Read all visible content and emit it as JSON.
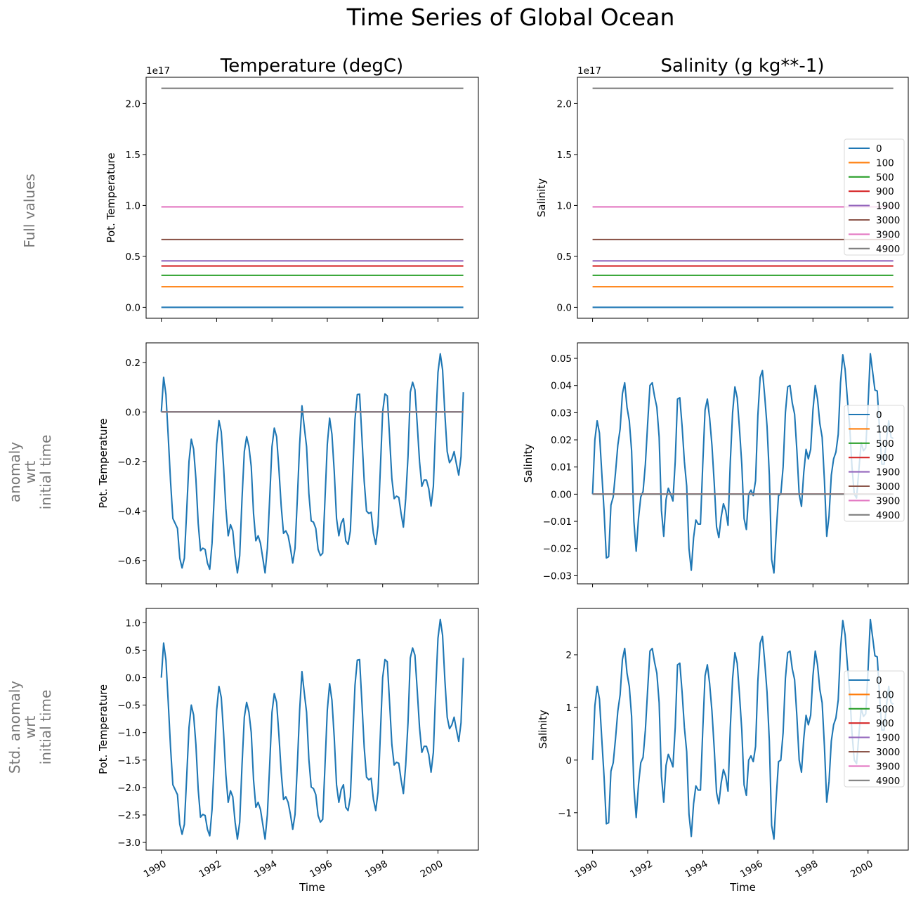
{
  "title": "Time Series of Global Ocean",
  "columns": [
    "Temperature (degC)",
    "Salinity (g kg**-1)"
  ],
  "row_labels": [
    [
      "Full values"
    ],
    [
      "anomaly",
      "wrt",
      "initial time"
    ],
    [
      "Std. anomaly",
      "wrt",
      "initial time"
    ]
  ],
  "colors": {
    "0": "#1f77b4",
    "100": "#ff7f0e",
    "500": "#2ca02c",
    "900": "#d62728",
    "1900": "#9467bd",
    "3000": "#8c564b",
    "3900": "#e377c2",
    "4900": "#7f7f7f"
  },
  "time": [
    "1990-01",
    "1990-02",
    "1990-03",
    "1990-04",
    "1990-05",
    "1990-06",
    "1990-07",
    "1990-08",
    "1990-09",
    "1990-10",
    "1990-11",
    "1990-12",
    "1991-01",
    "1991-02",
    "1991-03",
    "1991-04",
    "1991-05",
    "1991-06",
    "1991-07",
    "1991-08",
    "1991-09",
    "1991-10",
    "1991-11",
    "1991-12",
    "1992-01",
    "1992-02",
    "1992-03",
    "1992-04",
    "1992-05",
    "1992-06",
    "1992-07",
    "1992-08",
    "1992-09",
    "1992-10",
    "1992-11",
    "1992-12",
    "1993-01",
    "1993-02",
    "1993-03",
    "1993-04",
    "1993-05",
    "1993-06",
    "1993-07",
    "1993-08",
    "1993-09",
    "1993-10",
    "1993-11",
    "1993-12",
    "1994-01",
    "1994-02",
    "1994-03",
    "1994-04",
    "1994-05",
    "1994-06",
    "1994-07",
    "1994-08",
    "1994-09",
    "1994-10",
    "1994-11",
    "1994-12",
    "1995-01",
    "1995-02",
    "1995-03",
    "1995-04",
    "1995-05",
    "1995-06",
    "1995-07",
    "1995-08",
    "1995-09",
    "1995-10",
    "1995-11",
    "1995-12",
    "1996-01",
    "1996-02",
    "1996-03",
    "1996-04",
    "1996-05",
    "1996-06",
    "1996-07",
    "1996-08",
    "1996-09",
    "1996-10",
    "1996-11",
    "1996-12",
    "1997-01",
    "1997-02",
    "1997-03",
    "1997-04",
    "1997-05",
    "1997-06",
    "1997-07",
    "1997-08",
    "1997-09",
    "1997-10",
    "1997-11",
    "1997-12",
    "1998-01",
    "1998-02",
    "1998-03",
    "1998-04",
    "1998-05",
    "1998-06",
    "1998-07",
    "1998-08",
    "1998-09",
    "1998-10",
    "1998-11",
    "1998-12",
    "1999-01",
    "1999-02",
    "1999-03",
    "1999-04",
    "1999-05",
    "1999-06",
    "1999-07",
    "1999-08",
    "1999-09",
    "1999-10",
    "1999-11",
    "1999-12",
    "2000-01",
    "2000-02",
    "2000-03",
    "2000-04",
    "2000-05",
    "2000-06",
    "2000-07",
    "2000-08",
    "2000-09",
    "2000-10",
    "2000-11",
    "2000-12"
  ],
  "chart_data": [
    {
      "type": "line",
      "row": 0,
      "col": 0,
      "ylabel": "Pot. Temperature",
      "xlabel": "",
      "offset_text": "1e17",
      "xlim": [
        1989.45,
        2001.46
      ],
      "ylim": [
        -1.075e+16,
        2.258e+17
      ],
      "xticks": [
        1990,
        1992,
        1994,
        1996,
        1998,
        2000
      ],
      "xtick_labels": [],
      "yticks": [
        0,
        5e+16,
        1e+17,
        1.5e+17,
        2e+17
      ],
      "ytick_labels": [
        "0.0",
        "0.5",
        "1.0",
        "1.5",
        "2.0"
      ],
      "legend": false,
      "series": [
        {
          "name": "0",
          "value": 0
        },
        {
          "name": "100",
          "value": 2.02e+16
        },
        {
          "name": "500",
          "value": 3.14e+16
        },
        {
          "name": "900",
          "value": 4.06e+16
        },
        {
          "name": "1900",
          "value": 4.56e+16
        },
        {
          "name": "3000",
          "value": 6.65e+16
        },
        {
          "name": "3900",
          "value": 9.86e+16
        },
        {
          "name": "4900",
          "value": 2.15e+17
        }
      ]
    },
    {
      "type": "line",
      "row": 0,
      "col": 1,
      "ylabel": "Salinity",
      "xlabel": "",
      "offset_text": "1e17",
      "xlim": [
        1989.45,
        2001.46
      ],
      "ylim": [
        -1.075e+16,
        2.258e+17
      ],
      "xticks": [
        1990,
        1992,
        1994,
        1996,
        1998,
        2000
      ],
      "xtick_labels": [],
      "yticks": [
        0,
        5e+16,
        1e+17,
        1.5e+17,
        2e+17
      ],
      "ytick_labels": [
        "0.0",
        "0.5",
        "1.0",
        "1.5",
        "2.0"
      ],
      "legend": "center-right",
      "series": [
        {
          "name": "0",
          "value": 0
        },
        {
          "name": "100",
          "value": 2.02e+16
        },
        {
          "name": "500",
          "value": 3.14e+16
        },
        {
          "name": "900",
          "value": 4.06e+16
        },
        {
          "name": "1900",
          "value": 4.56e+16
        },
        {
          "name": "3000",
          "value": 6.65e+16
        },
        {
          "name": "3900",
          "value": 9.86e+16
        },
        {
          "name": "4900",
          "value": 2.15e+17
        }
      ]
    },
    {
      "type": "line",
      "row": 1,
      "col": 0,
      "ylabel": "Pot. Temperature",
      "xlabel": "",
      "xlim": [
        1989.45,
        2001.46
      ],
      "ylim": [
        -0.694,
        0.279
      ],
      "xticks": [
        1990,
        1992,
        1994,
        1996,
        1998,
        2000
      ],
      "xtick_labels": [],
      "yticks": [
        -0.6,
        -0.4,
        -0.2,
        0.0,
        0.2
      ],
      "ytick_labels": [
        "−0.6",
        "−0.4",
        "−0.2",
        "0.0",
        "0.2"
      ],
      "legend": false,
      "series": [
        {
          "name": "0",
          "values": [
            0,
            0.14,
            0.07,
            -0.1,
            -0.28,
            -0.43,
            -0.45,
            -0.47,
            -0.59,
            -0.63,
            -0.59,
            -0.4,
            -0.2,
            -0.11,
            -0.15,
            -0.27,
            -0.45,
            -0.56,
            -0.55,
            -0.555,
            -0.61,
            -0.635,
            -0.53,
            -0.33,
            -0.13,
            -0.035,
            -0.08,
            -0.22,
            -0.39,
            -0.5,
            -0.455,
            -0.48,
            -0.58,
            -0.65,
            -0.58,
            -0.35,
            -0.16,
            -0.1,
            -0.14,
            -0.22,
            -0.41,
            -0.52,
            -0.5,
            -0.53,
            -0.59,
            -0.65,
            -0.55,
            -0.35,
            -0.14,
            -0.065,
            -0.1,
            -0.23,
            -0.38,
            -0.49,
            -0.48,
            -0.5,
            -0.55,
            -0.61,
            -0.55,
            -0.35,
            -0.13,
            0.025,
            -0.06,
            -0.14,
            -0.33,
            -0.44,
            -0.445,
            -0.47,
            -0.555,
            -0.58,
            -0.57,
            -0.35,
            -0.13,
            -0.025,
            -0.09,
            -0.24,
            -0.43,
            -0.5,
            -0.45,
            -0.43,
            -0.52,
            -0.535,
            -0.48,
            -0.25,
            -0.03,
            0.07,
            0.072,
            -0.1,
            -0.28,
            -0.4,
            -0.41,
            -0.405,
            -0.49,
            -0.535,
            -0.46,
            -0.23,
            0.0,
            0.073,
            0.065,
            -0.1,
            -0.27,
            -0.35,
            -0.34,
            -0.345,
            -0.41,
            -0.465,
            -0.35,
            -0.18,
            0.08,
            0.12,
            0.09,
            -0.05,
            -0.2,
            -0.3,
            -0.275,
            -0.275,
            -0.31,
            -0.38,
            -0.3,
            -0.05,
            0.16,
            0.235,
            0.17,
            -0.01,
            -0.16,
            -0.205,
            -0.19,
            -0.16,
            -0.21,
            -0.255,
            -0.18,
            0.08
          ]
        },
        {
          "name": "100",
          "value": 0
        },
        {
          "name": "500",
          "value": 0
        },
        {
          "name": "900",
          "value": 0
        },
        {
          "name": "1900",
          "value": 0
        },
        {
          "name": "3000",
          "value": 0
        },
        {
          "name": "3900",
          "value": 0
        },
        {
          "name": "4900",
          "value": 0
        }
      ]
    },
    {
      "type": "line",
      "row": 1,
      "col": 1,
      "ylabel": "Salinity",
      "xlabel": "",
      "xlim": [
        1989.45,
        2001.46
      ],
      "ylim": [
        -0.033,
        0.0557
      ],
      "xticks": [
        1990,
        1992,
        1994,
        1996,
        1998,
        2000
      ],
      "xtick_labels": [],
      "yticks": [
        -0.03,
        -0.02,
        -0.01,
        0.0,
        0.01,
        0.02,
        0.03,
        0.04,
        0.05
      ],
      "ytick_labels": [
        "−0.03",
        "−0.02",
        "−0.01",
        "0.00",
        "0.01",
        "0.02",
        "0.03",
        "0.04",
        "0.05"
      ],
      "legend": "center-right",
      "series": [
        {
          "name": "0",
          "values": [
            0,
            0.02,
            0.027,
            0.0225,
            0.008,
            -0.006,
            -0.0235,
            -0.023,
            -0.004,
            -0.001,
            0.008,
            0.018,
            0.024,
            0.037,
            0.041,
            0.032,
            0.027,
            0.016,
            -0.01,
            -0.021,
            -0.009,
            -0.001,
            0.001,
            0.011,
            0.026,
            0.04,
            0.041,
            0.036,
            0.032,
            0.021,
            -0.006,
            -0.0155,
            -0.002,
            0.0022,
            0.0,
            -0.0025,
            0.012,
            0.035,
            0.0355,
            0.025,
            0.012,
            0.003,
            -0.02,
            -0.028,
            -0.016,
            -0.0095,
            -0.011,
            -0.011,
            0.011,
            0.031,
            0.035,
            0.028,
            0.018,
            0.004,
            -0.012,
            -0.016,
            -0.0085,
            -0.0035,
            -0.006,
            -0.0115,
            0.012,
            0.03,
            0.0395,
            0.0355,
            0.024,
            0.011,
            -0.009,
            -0.013,
            0.0,
            0.0015,
            -0.0005,
            0.005,
            0.029,
            0.043,
            0.0455,
            0.036,
            0.025,
            0.007,
            -0.024,
            -0.029,
            -0.014,
            -0.0005,
            0.0,
            0.01,
            0.03,
            0.0395,
            0.04,
            0.0335,
            0.0295,
            0.016,
            0.0,
            -0.0045,
            0.008,
            0.0165,
            0.013,
            0.0165,
            0.031,
            0.04,
            0.035,
            0.026,
            0.021,
            0.005,
            -0.0155,
            -0.008,
            0.007,
            0.013,
            0.0155,
            0.022,
            0.041,
            0.0513,
            0.046,
            0.035,
            0.025,
            0.01,
            0.0,
            -0.0014,
            0.009,
            0.019,
            0.016,
            0.017,
            0.033,
            0.0517,
            0.045,
            0.0383,
            0.038,
            0.024,
            0.011,
            0.011,
            0.02,
            0.027,
            0.021,
            0.0205
          ]
        },
        {
          "name": "100",
          "value": 0
        },
        {
          "name": "500",
          "value": 0
        },
        {
          "name": "900",
          "value": 0
        },
        {
          "name": "1900",
          "value": 0
        },
        {
          "name": "3000",
          "value": 0
        },
        {
          "name": "3900",
          "value": 0
        },
        {
          "name": "4900",
          "value": 0
        }
      ]
    },
    {
      "type": "line",
      "row": 2,
      "col": 0,
      "ylabel": "Pot. Temperature",
      "xlabel": "Time",
      "xlim": [
        1989.45,
        2001.46
      ],
      "ylim": [
        -3.14,
        1.26
      ],
      "xticks": [
        1990,
        1992,
        1994,
        1996,
        1998,
        2000
      ],
      "xtick_labels": [
        "1990",
        "1992",
        "1994",
        "1996",
        "1998",
        "2000"
      ],
      "yticks": [
        -3.0,
        -2.5,
        -2.0,
        -1.5,
        -1.0,
        -0.5,
        0.0,
        0.5,
        1.0
      ],
      "ytick_labels": [
        "−3.0",
        "−2.5",
        "−2.0",
        "−1.5",
        "−1.0",
        "−0.5",
        "0.0",
        "0.5",
        "1.0"
      ],
      "legend": false,
      "series": [
        {
          "name": "0",
          "values": [
            0,
            0.63,
            0.32,
            -0.45,
            -1.27,
            -1.95,
            -2.04,
            -2.13,
            -2.67,
            -2.85,
            -2.67,
            -1.81,
            -0.91,
            -0.5,
            -0.68,
            -1.22,
            -2.04,
            -2.54,
            -2.49,
            -2.51,
            -2.76,
            -2.88,
            -2.4,
            -1.49,
            -0.59,
            -0.16,
            -0.36,
            -1.0,
            -1.77,
            -2.27,
            -2.06,
            -2.17,
            -2.63,
            -2.94,
            -2.63,
            -1.59,
            -0.72,
            -0.45,
            -0.63,
            -1.0,
            -1.86,
            -2.36,
            -2.27,
            -2.4,
            -2.67,
            -2.94,
            -2.49,
            -1.59,
            -0.63,
            -0.29,
            -0.45,
            -1.04,
            -1.72,
            -2.22,
            -2.17,
            -2.27,
            -2.49,
            -2.76,
            -2.49,
            -1.59,
            -0.59,
            0.11,
            -0.27,
            -0.63,
            -1.49,
            -1.99,
            -2.02,
            -2.13,
            -2.51,
            -2.63,
            -2.58,
            -1.59,
            -0.59,
            -0.11,
            -0.41,
            -1.09,
            -1.95,
            -2.27,
            -2.04,
            -1.95,
            -2.36,
            -2.42,
            -2.17,
            -1.13,
            -0.14,
            0.32,
            0.33,
            -0.45,
            -1.27,
            -1.81,
            -1.86,
            -1.83,
            -2.22,
            -2.42,
            -2.08,
            -1.04,
            0,
            0.33,
            0.29,
            -0.45,
            -1.22,
            -1.59,
            -1.54,
            -1.56,
            -1.86,
            -2.11,
            -1.59,
            -0.82,
            0.36,
            0.54,
            0.41,
            -0.23,
            -0.91,
            -1.36,
            -1.25,
            -1.25,
            -1.4,
            -1.72,
            -1.36,
            -0.23,
            0.72,
            1.06,
            0.77,
            -0.05,
            -0.72,
            -0.93,
            -0.86,
            -0.72,
            -0.95,
            -1.16,
            -0.82,
            0.36
          ]
        }
      ]
    },
    {
      "type": "line",
      "row": 2,
      "col": 1,
      "ylabel": "Salinity",
      "xlabel": "Time",
      "xlim": [
        1989.45,
        2001.46
      ],
      "ylim": [
        -1.71,
        2.88
      ],
      "xticks": [
        1990,
        1992,
        1994,
        1996,
        1998,
        2000
      ],
      "xtick_labels": [
        "1990",
        "1992",
        "1994",
        "1996",
        "1998",
        "2000"
      ],
      "yticks": [
        -1,
        0,
        1,
        2
      ],
      "ytick_labels": [
        "−1",
        "0",
        "1",
        "2"
      ],
      "legend": "center-right",
      "series": [
        {
          "name": "0",
          "values": [
            0,
            1.03,
            1.4,
            1.16,
            0.41,
            -0.31,
            -1.21,
            -1.19,
            -0.21,
            -0.05,
            0.41,
            0.93,
            1.24,
            1.91,
            2.12,
            1.65,
            1.4,
            0.83,
            -0.52,
            -1.09,
            -0.47,
            -0.05,
            0.05,
            0.57,
            1.34,
            2.07,
            2.12,
            1.86,
            1.65,
            1.09,
            -0.31,
            -0.8,
            -0.1,
            0.11,
            0,
            -0.13,
            0.62,
            1.81,
            1.84,
            1.29,
            0.62,
            0.16,
            -1.03,
            -1.45,
            -0.83,
            -0.49,
            -0.57,
            -0.57,
            0.57,
            1.6,
            1.81,
            1.45,
            0.93,
            0.21,
            -0.62,
            -0.83,
            -0.44,
            -0.18,
            -0.31,
            -0.59,
            0.62,
            1.55,
            2.04,
            1.84,
            1.24,
            0.57,
            -0.47,
            -0.67,
            0,
            0.08,
            -0.03,
            0.26,
            1.5,
            2.22,
            2.35,
            1.86,
            1.29,
            0.36,
            -1.24,
            -1.5,
            -0.72,
            -0.03,
            0,
            0.52,
            1.55,
            2.04,
            2.07,
            1.73,
            1.53,
            0.83,
            0,
            -0.23,
            0.41,
            0.85,
            0.67,
            0.85,
            1.6,
            2.07,
            1.81,
            1.34,
            1.09,
            0.26,
            -0.8,
            -0.41,
            0.36,
            0.67,
            0.8,
            1.14,
            2.12,
            2.65,
            2.38,
            1.81,
            1.29,
            0.52,
            0,
            -0.07,
            0.47,
            0.98,
            0.83,
            0.88,
            1.71,
            2.67,
            2.33,
            1.98,
            1.96,
            1.24,
            0.57,
            0.57,
            1.03,
            1.4,
            1.09,
            1.06
          ]
        },
        {
          "name": "100",
          "value": null
        },
        {
          "name": "500",
          "value": null
        },
        {
          "name": "900",
          "value": null
        },
        {
          "name": "1900",
          "value": null
        },
        {
          "name": "3000",
          "value": null
        },
        {
          "name": "3900",
          "value": null
        },
        {
          "name": "4900",
          "value": null
        }
      ]
    }
  ]
}
